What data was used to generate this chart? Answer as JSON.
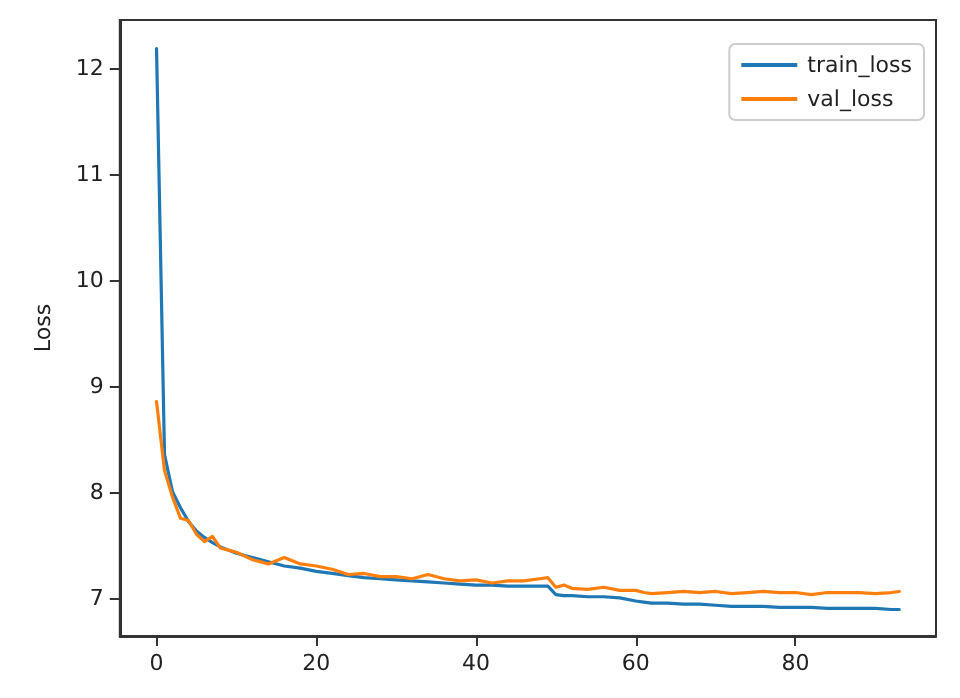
{
  "chart_data": {
    "type": "line",
    "ylabel": "Loss",
    "x": [
      0,
      1,
      2,
      3,
      4,
      5,
      6,
      7,
      8,
      9,
      10,
      12,
      14,
      16,
      18,
      20,
      22,
      24,
      26,
      28,
      30,
      32,
      34,
      36,
      38,
      40,
      42,
      44,
      46,
      48,
      49,
      50,
      51,
      52,
      54,
      56,
      58,
      60,
      61,
      62,
      64,
      66,
      68,
      70,
      72,
      74,
      76,
      78,
      80,
      82,
      84,
      86,
      88,
      90,
      92,
      93
    ],
    "series": [
      {
        "name": "train_loss",
        "color": "#1f77b4",
        "values": [
          12.18,
          8.35,
          8.0,
          7.85,
          7.72,
          7.63,
          7.57,
          7.52,
          7.48,
          7.45,
          7.42,
          7.38,
          7.34,
          7.3,
          7.28,
          7.25,
          7.23,
          7.21,
          7.19,
          7.18,
          7.17,
          7.16,
          7.15,
          7.14,
          7.13,
          7.12,
          7.12,
          7.11,
          7.11,
          7.11,
          7.11,
          7.03,
          7.02,
          7.02,
          7.01,
          7.01,
          7.0,
          6.97,
          6.96,
          6.95,
          6.95,
          6.94,
          6.94,
          6.93,
          6.92,
          6.92,
          6.92,
          6.91,
          6.91,
          6.91,
          6.9,
          6.9,
          6.9,
          6.9,
          6.89,
          6.89
        ]
      },
      {
        "name": "val_loss",
        "color": "#ff7f0e",
        "values": [
          8.85,
          8.2,
          7.95,
          7.75,
          7.73,
          7.6,
          7.53,
          7.58,
          7.47,
          7.45,
          7.43,
          7.36,
          7.32,
          7.38,
          7.32,
          7.3,
          7.27,
          7.22,
          7.23,
          7.2,
          7.2,
          7.18,
          7.22,
          7.18,
          7.16,
          7.17,
          7.14,
          7.16,
          7.16,
          7.18,
          7.19,
          7.1,
          7.12,
          7.09,
          7.08,
          7.1,
          7.07,
          7.07,
          7.05,
          7.04,
          7.05,
          7.06,
          7.05,
          7.06,
          7.04,
          7.05,
          7.06,
          7.05,
          7.05,
          7.03,
          7.05,
          7.05,
          7.05,
          7.04,
          7.05,
          7.06
        ]
      }
    ],
    "xlim": [
      -4.6,
      97.6
    ],
    "xticks": [
      0,
      20,
      40,
      60,
      80
    ],
    "ylim": [
      6.64,
      12.45
    ],
    "yticks": [
      7,
      8,
      9,
      10,
      11,
      12
    ],
    "grid": false,
    "legend": "top right",
    "marker": "none",
    "line_style": "solid"
  }
}
